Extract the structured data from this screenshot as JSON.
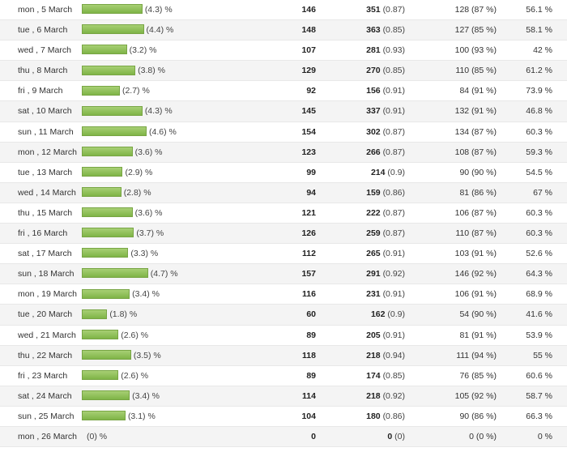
{
  "rows": [
    {
      "date": "mon , 5 March",
      "pct": 4.3,
      "pct_text": "(4.3) %",
      "visits": "146",
      "pages": "351",
      "pages_avg": "(0.87)",
      "returning": "128 (87 %)",
      "bounce": "56.1 %"
    },
    {
      "date": "tue , 6 March",
      "pct": 4.4,
      "pct_text": "(4.4) %",
      "visits": "148",
      "pages": "363",
      "pages_avg": "(0.85)",
      "returning": "127 (85 %)",
      "bounce": "58.1 %"
    },
    {
      "date": "wed , 7 March",
      "pct": 3.2,
      "pct_text": "(3.2) %",
      "visits": "107",
      "pages": "281",
      "pages_avg": "(0.93)",
      "returning": "100 (93 %)",
      "bounce": "42 %"
    },
    {
      "date": "thu , 8 March",
      "pct": 3.8,
      "pct_text": "(3.8) %",
      "visits": "129",
      "pages": "270",
      "pages_avg": "(0.85)",
      "returning": "110 (85 %)",
      "bounce": "61.2 %"
    },
    {
      "date": "fri , 9 March",
      "pct": 2.7,
      "pct_text": "(2.7) %",
      "visits": "92",
      "pages": "156",
      "pages_avg": "(0.91)",
      "returning": "84 (91 %)",
      "bounce": "73.9 %"
    },
    {
      "date": "sat , 10 March",
      "pct": 4.3,
      "pct_text": "(4.3) %",
      "visits": "145",
      "pages": "337",
      "pages_avg": "(0.91)",
      "returning": "132 (91 %)",
      "bounce": "46.8 %"
    },
    {
      "date": "sun , 11 March",
      "pct": 4.6,
      "pct_text": "(4.6) %",
      "visits": "154",
      "pages": "302",
      "pages_avg": "(0.87)",
      "returning": "134 (87 %)",
      "bounce": "60.3 %"
    },
    {
      "date": "mon , 12 March",
      "pct": 3.6,
      "pct_text": "(3.6) %",
      "visits": "123",
      "pages": "266",
      "pages_avg": "(0.87)",
      "returning": "108 (87 %)",
      "bounce": "59.3 %"
    },
    {
      "date": "tue , 13 March",
      "pct": 2.9,
      "pct_text": "(2.9) %",
      "visits": "99",
      "pages": "214",
      "pages_avg": "(0.9)",
      "returning": "90 (90 %)",
      "bounce": "54.5 %"
    },
    {
      "date": "wed , 14 March",
      "pct": 2.8,
      "pct_text": "(2.8) %",
      "visits": "94",
      "pages": "159",
      "pages_avg": "(0.86)",
      "returning": "81 (86 %)",
      "bounce": "67 %"
    },
    {
      "date": "thu , 15 March",
      "pct": 3.6,
      "pct_text": "(3.6) %",
      "visits": "121",
      "pages": "222",
      "pages_avg": "(0.87)",
      "returning": "106 (87 %)",
      "bounce": "60.3 %"
    },
    {
      "date": "fri , 16 March",
      "pct": 3.7,
      "pct_text": "(3.7) %",
      "visits": "126",
      "pages": "259",
      "pages_avg": "(0.87)",
      "returning": "110 (87 %)",
      "bounce": "60.3 %"
    },
    {
      "date": "sat , 17 March",
      "pct": 3.3,
      "pct_text": "(3.3) %",
      "visits": "112",
      "pages": "265",
      "pages_avg": "(0.91)",
      "returning": "103 (91 %)",
      "bounce": "52.6 %"
    },
    {
      "date": "sun , 18 March",
      "pct": 4.7,
      "pct_text": "(4.7) %",
      "visits": "157",
      "pages": "291",
      "pages_avg": "(0.92)",
      "returning": "146 (92 %)",
      "bounce": "64.3 %"
    },
    {
      "date": "mon , 19 March",
      "pct": 3.4,
      "pct_text": "(3.4) %",
      "visits": "116",
      "pages": "231",
      "pages_avg": "(0.91)",
      "returning": "106 (91 %)",
      "bounce": "68.9 %"
    },
    {
      "date": "tue , 20 March",
      "pct": 1.8,
      "pct_text": "(1.8) %",
      "visits": "60",
      "pages": "162",
      "pages_avg": "(0.9)",
      "returning": "54 (90 %)",
      "bounce": "41.6 %"
    },
    {
      "date": "wed , 21 March",
      "pct": 2.6,
      "pct_text": "(2.6) %",
      "visits": "89",
      "pages": "205",
      "pages_avg": "(0.91)",
      "returning": "81 (91 %)",
      "bounce": "53.9 %"
    },
    {
      "date": "thu , 22 March",
      "pct": 3.5,
      "pct_text": "(3.5) %",
      "visits": "118",
      "pages": "218",
      "pages_avg": "(0.94)",
      "returning": "111 (94 %)",
      "bounce": "55 %"
    },
    {
      "date": "fri , 23 March",
      "pct": 2.6,
      "pct_text": "(2.6) %",
      "visits": "89",
      "pages": "174",
      "pages_avg": "(0.85)",
      "returning": "76 (85 %)",
      "bounce": "60.6 %"
    },
    {
      "date": "sat , 24 March",
      "pct": 3.4,
      "pct_text": "(3.4) %",
      "visits": "114",
      "pages": "218",
      "pages_avg": "(0.92)",
      "returning": "105 (92 %)",
      "bounce": "58.7 %"
    },
    {
      "date": "sun , 25 March",
      "pct": 3.1,
      "pct_text": "(3.1) %",
      "visits": "104",
      "pages": "180",
      "pages_avg": "(0.86)",
      "returning": "90 (86 %)",
      "bounce": "66.3 %"
    },
    {
      "date": "mon , 26 March",
      "pct": 0,
      "pct_text": "(0) %",
      "visits": "0",
      "pages": "0",
      "pages_avg": "(0)",
      "returning": "0 (0 %)",
      "bounce": "0 %"
    }
  ],
  "colors": {
    "bar_fill": "#8bbf52",
    "row_alt": "#f4f4f4"
  }
}
